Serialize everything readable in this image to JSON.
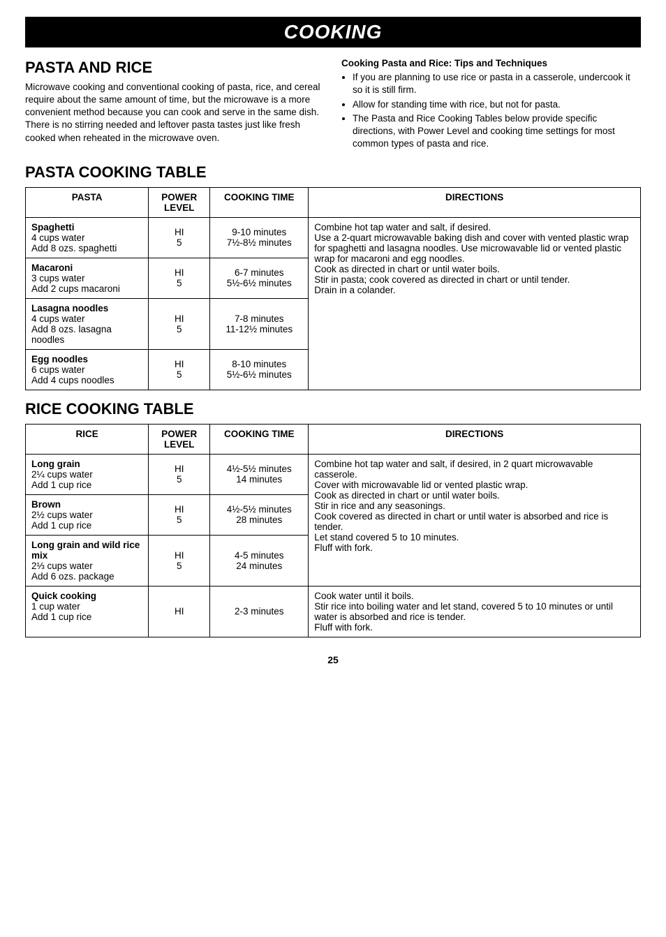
{
  "banner": "COOKING",
  "intro": {
    "heading": "PASTA AND RICE",
    "body": "Microwave cooking and conventional cooking of pasta, rice, and cereal require about the same amount of time, but the microwave is a more convenient method because you can cook and serve in the same dish. There is no stirring needed and leftover pasta tastes just like fresh cooked when reheated in the microwave oven."
  },
  "tips": {
    "title": "Cooking Pasta and Rice: Tips and Techniques",
    "items": [
      "If you are planning to use rice or pasta in a casserole, undercook it so it is still firm.",
      "Allow for standing time with rice, but not for pasta.",
      "The Pasta and Rice Cooking Tables below provide specific directions, with Power Level and cooking time settings for most common types of pasta and rice."
    ]
  },
  "pastaTable": {
    "title": "PASTA COOKING TABLE",
    "headers": {
      "c1": "PASTA",
      "c2": "POWER LEVEL",
      "c3": "COOKING TIME",
      "c4": "DIRECTIONS"
    },
    "directions": "Combine hot tap water and salt, if desired.\nUse a 2-quart microwavable baking dish and cover with vented plastic wrap for spaghetti and lasagna noodles. Use microwavable lid or vented plastic wrap for macaroni and egg noodles.\nCook as directed in chart or until water boils.\nStir in pasta; cook covered as directed in chart or until tender.\nDrain in a colander.",
    "rows": [
      {
        "label": "Spaghetti",
        "sub": "4 cups water\nAdd 8 ozs. spaghetti",
        "power": "HI\n5",
        "time": "9-10 minutes\n7½-8½ minutes"
      },
      {
        "label": "Macaroni",
        "sub": "3 cups water\nAdd 2 cups macaroni",
        "power": "HI\n5",
        "time": "6-7 minutes\n5½-6½ minutes"
      },
      {
        "label": "Lasagna noodles",
        "sub": "4 cups water\nAdd 8 ozs. lasagna noodles",
        "power": "HI\n5",
        "time": "7-8 minutes\n11-12½ minutes"
      },
      {
        "label": "Egg noodles",
        "sub": "6 cups water\nAdd 4 cups noodles",
        "power": "HI\n5",
        "time": "8-10 minutes\n5½-6½ minutes"
      }
    ]
  },
  "riceTable": {
    "title": "RICE COOKING TABLE",
    "headers": {
      "c1": "RICE",
      "c2": "POWER LEVEL",
      "c3": "COOKING TIME",
      "c4": "DIRECTIONS"
    },
    "directions1": "Combine hot tap water and salt, if desired, in 2 quart microwavable casserole.\nCover with microwavable lid or vented plastic wrap.\nCook as directed in chart or until water boils.\nStir in rice and any seasonings.\nCook covered as directed in chart or until water is absorbed and rice is tender.\nLet stand covered 5 to 10 minutes.\nFluff with fork.",
    "directions2": "Cook water until it boils.\nStir rice into boiling water and let stand, covered 5 to 10 minutes or until water is absorbed and rice is tender.\nFluff with fork.",
    "rows": [
      {
        "label": "Long grain",
        "sub": "2¼ cups water\nAdd 1 cup rice",
        "power": "HI\n5",
        "time": "4½-5½ minutes\n14 minutes"
      },
      {
        "label": "Brown",
        "sub": "2½ cups water\nAdd 1 cup rice",
        "power": "HI\n5",
        "time": "4½-5½ minutes\n28 minutes"
      },
      {
        "label": "Long grain and wild rice mix",
        "sub": "2⅓ cups water\nAdd 6 ozs. package",
        "power": "HI\n5",
        "time": "4-5 minutes\n24 minutes"
      },
      {
        "label": "Quick cooking",
        "sub": "1 cup water\nAdd 1 cup rice",
        "power": "HI",
        "time": "2-3 minutes"
      }
    ]
  },
  "pageNumber": "25"
}
